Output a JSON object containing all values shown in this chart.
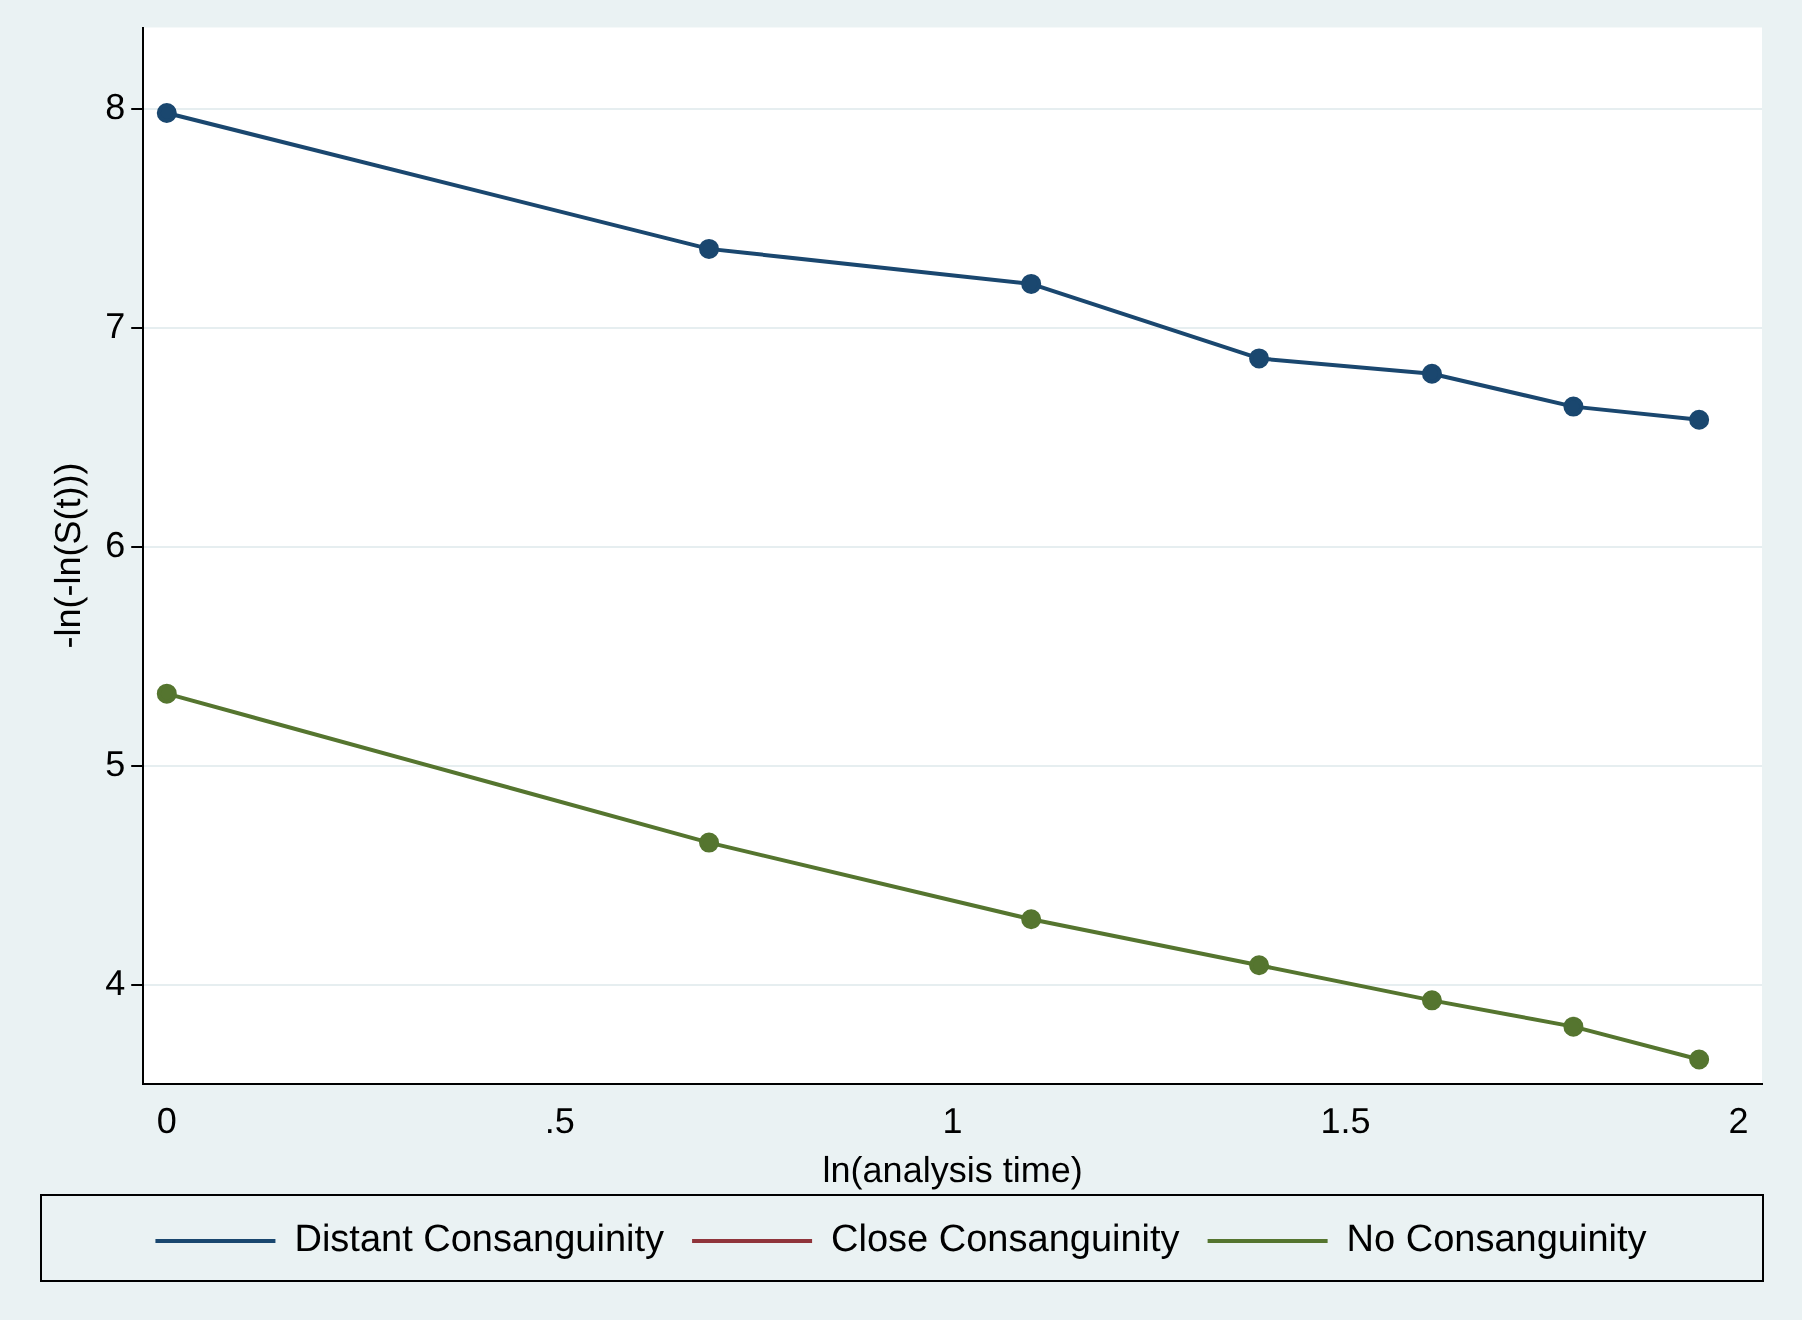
{
  "chart_data": {
    "type": "line",
    "xlabel": "ln(analysis time)",
    "ylabel": "-ln(-ln(S(t)))",
    "x": [
      0,
      0.69,
      1.1,
      1.39,
      1.61,
      1.79,
      1.95
    ],
    "series": [
      {
        "name": "Distant Consanguinity",
        "color": "#1a476f",
        "values": [
          7.98,
          7.36,
          7.2,
          6.86,
          6.79,
          6.64,
          6.58
        ]
      },
      {
        "name": "Close Consanguinity",
        "color": "#90353b",
        "values": [
          null,
          null,
          null,
          null,
          null,
          null,
          null
        ]
      },
      {
        "name": "No Consanguinity",
        "color": "#55752f",
        "values": [
          5.33,
          4.65,
          4.3,
          4.09,
          3.93,
          3.81,
          3.66
        ]
      }
    ],
    "xlim": [
      -0.03,
      2.03
    ],
    "xticks": [
      0,
      {
        "value": 0.5,
        "label": ".5"
      },
      1,
      {
        "value": 1.5,
        "label": "1.5"
      },
      2
    ],
    "ylim": [
      3.55,
      8.37
    ],
    "yticks": [
      4,
      5,
      6,
      7,
      8
    ],
    "grid": "y",
    "legend": "bottom",
    "marker": "circle",
    "line_style": "solid"
  }
}
